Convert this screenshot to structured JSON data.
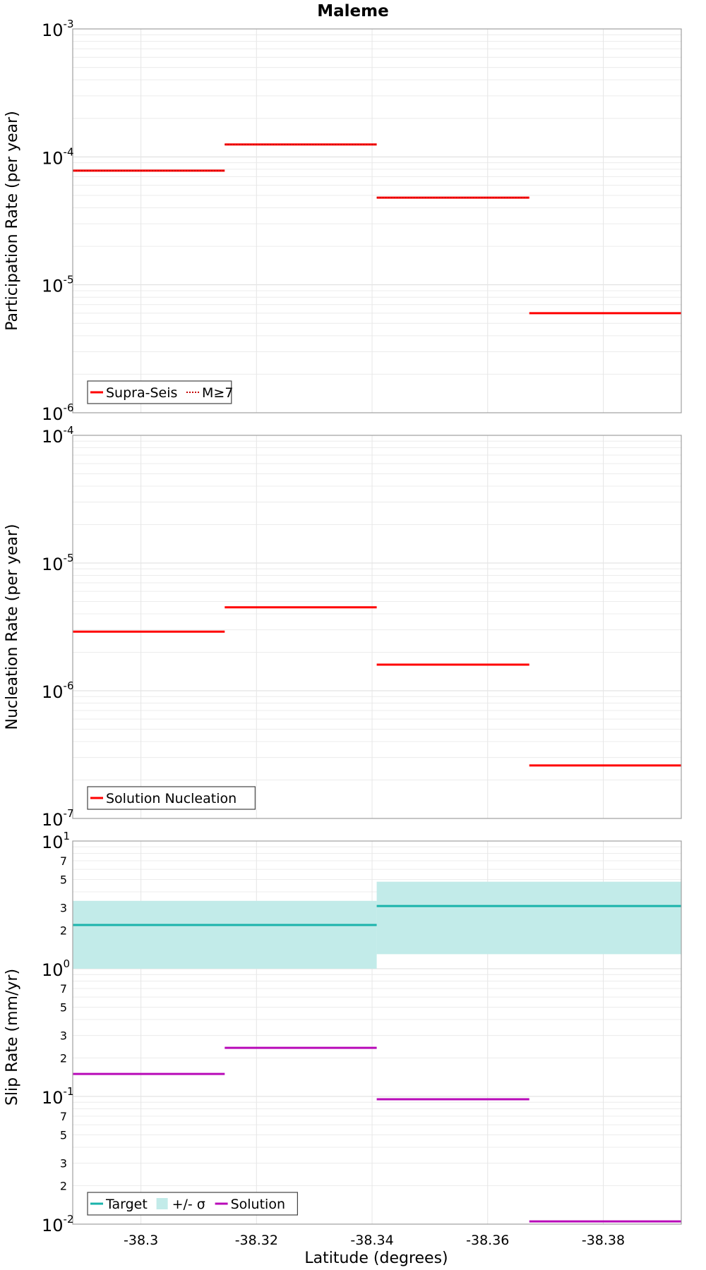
{
  "chart_data": {
    "title": "Maleme",
    "xlabel": "Latitude (degrees)",
    "x_ticks": [
      "-38.3",
      "-38.32",
      "-38.34",
      "-38.36",
      "-38.38"
    ],
    "x_tick_values": [
      -38.3,
      -38.32,
      -38.34,
      -38.36,
      -38.38
    ],
    "xlim": [
      -38.2882,
      -38.3935
    ],
    "x_reversed": true,
    "grid": true,
    "panels": [
      {
        "type": "line",
        "ylabel": "Participation Rate (per year)",
        "yscale": "log",
        "ylim": [
          1e-06,
          0.001
        ],
        "y_major_ticks": [
          {
            "base": "10",
            "exp": "-6"
          },
          {
            "base": "10",
            "exp": "-5"
          },
          {
            "base": "10",
            "exp": "-4"
          },
          {
            "base": "10",
            "exp": "-3"
          }
        ],
        "legend": {
          "position": "bottom-left"
        },
        "series": [
          {
            "name": "Supra-Seis",
            "color": "#ff0000",
            "style": "solid",
            "segments": [
              {
                "x0": -38.2882,
                "x1": -38.3145,
                "y": 7.8e-05
              },
              {
                "x0": -38.3145,
                "x1": -38.3408,
                "y": 0.000125
              },
              {
                "x0": -38.3408,
                "x1": -38.3672,
                "y": 4.8e-05
              },
              {
                "x0": -38.3672,
                "x1": -38.3935,
                "y": 6e-06
              }
            ]
          },
          {
            "name": "M≥7",
            "color": "#ff0000",
            "style": "dotted",
            "segments": [
              {
                "x0": -38.2882,
                "x1": -38.3145,
                "y": 7.8e-05
              },
              {
                "x0": -38.3145,
                "x1": -38.3408,
                "y": 0.000125
              },
              {
                "x0": -38.3408,
                "x1": -38.3672,
                "y": 4.8e-05
              }
            ]
          }
        ]
      },
      {
        "type": "line",
        "ylabel": "Nucleation Rate (per year)",
        "yscale": "log",
        "ylim": [
          1e-07,
          0.0001
        ],
        "y_major_ticks": [
          {
            "base": "10",
            "exp": "-7"
          },
          {
            "base": "10",
            "exp": "-6"
          },
          {
            "base": "10",
            "exp": "-5"
          },
          {
            "base": "10",
            "exp": "-4"
          }
        ],
        "legend": {
          "position": "bottom-left"
        },
        "series": [
          {
            "name": "Solution Nucleation",
            "color": "#ff0000",
            "style": "solid",
            "segments": [
              {
                "x0": -38.2882,
                "x1": -38.3145,
                "y": 2.9e-06
              },
              {
                "x0": -38.3145,
                "x1": -38.3408,
                "y": 4.5e-06
              },
              {
                "x0": -38.3408,
                "x1": -38.3672,
                "y": 1.6e-06
              },
              {
                "x0": -38.3672,
                "x1": -38.3935,
                "y": 2.6e-07
              }
            ]
          }
        ]
      },
      {
        "type": "line",
        "ylabel": "Slip Rate (mm/yr)",
        "yscale": "log",
        "ylim": [
          0.01,
          10
        ],
        "y_major_ticks": [
          {
            "base": "10",
            "exp": "-2"
          },
          {
            "base": "10",
            "exp": "-1"
          },
          {
            "base": "10",
            "exp": "0"
          },
          {
            "base": "10",
            "exp": "1"
          }
        ],
        "y_minor_labels": [
          "2",
          "3",
          "5",
          "7"
        ],
        "legend": {
          "position": "bottom-left"
        },
        "bands": [
          {
            "name": "+/- σ",
            "color": "#c2ebe9",
            "segments": [
              {
                "x0": -38.2882,
                "x1": -38.3408,
                "y0": 1.0,
                "y1": 3.4
              },
              {
                "x0": -38.3408,
                "x1": -38.3935,
                "y0": 1.3,
                "y1": 4.8
              }
            ]
          }
        ],
        "series": [
          {
            "name": "Target",
            "color": "#1ab3ab",
            "style": "solid",
            "segments": [
              {
                "x0": -38.2882,
                "x1": -38.3408,
                "y": 2.2
              },
              {
                "x0": -38.3408,
                "x1": -38.3935,
                "y": 3.1
              }
            ]
          },
          {
            "name": "Solution",
            "color": "#b80ab8",
            "style": "solid",
            "segments": [
              {
                "x0": -38.2882,
                "x1": -38.3145,
                "y": 0.15
              },
              {
                "x0": -38.3145,
                "x1": -38.3408,
                "y": 0.24
              },
              {
                "x0": -38.3408,
                "x1": -38.3672,
                "y": 0.095
              },
              {
                "x0": -38.3672,
                "x1": -38.3935,
                "y": 0.0105
              }
            ]
          }
        ],
        "legend_entries": [
          {
            "name": "Target",
            "kind": "line",
            "color": "#1ab3ab"
          },
          {
            "name": "+/- σ",
            "kind": "band",
            "color": "#c2ebe9"
          },
          {
            "name": "Solution",
            "kind": "line",
            "color": "#b80ab8"
          }
        ]
      }
    ]
  }
}
